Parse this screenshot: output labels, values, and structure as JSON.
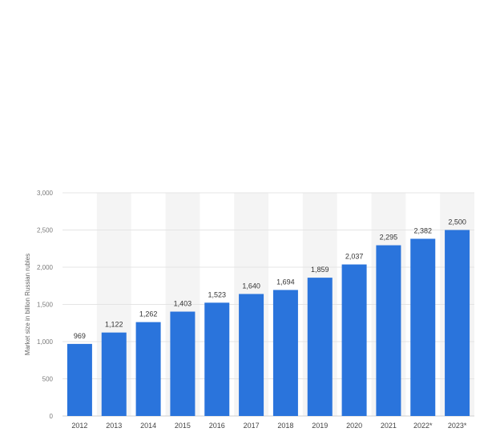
{
  "chart_data": {
    "type": "bar",
    "ylabel": "Market size in billion Russian rubles",
    "categories": [
      "2012",
      "2013",
      "2014",
      "2015",
      "2016",
      "2017",
      "2018",
      "2019",
      "2020",
      "2021",
      "2022*",
      "2023*"
    ],
    "values": [
      969,
      1122,
      1262,
      1403,
      1523,
      1640,
      1694,
      1859,
      2037,
      2295,
      2382,
      2500
    ],
    "value_labels": [
      "969",
      "1,122",
      "1,262",
      "1,403",
      "1,523",
      "1,640",
      "1,694",
      "1,859",
      "2,037",
      "2,295",
      "2,382",
      "2,500"
    ],
    "ylim": [
      0,
      3000
    ],
    "yticks": [
      0,
      500,
      1000,
      1500,
      2000,
      2500,
      3000
    ],
    "ytick_labels": [
      "0",
      "500",
      "1,000",
      "1,500",
      "2,000",
      "2,500",
      "3,000"
    ],
    "grid": true,
    "bar_color": "#2a74dc",
    "alt_band_color": "#f4f4f4",
    "grid_color": "#e4e4e4"
  }
}
